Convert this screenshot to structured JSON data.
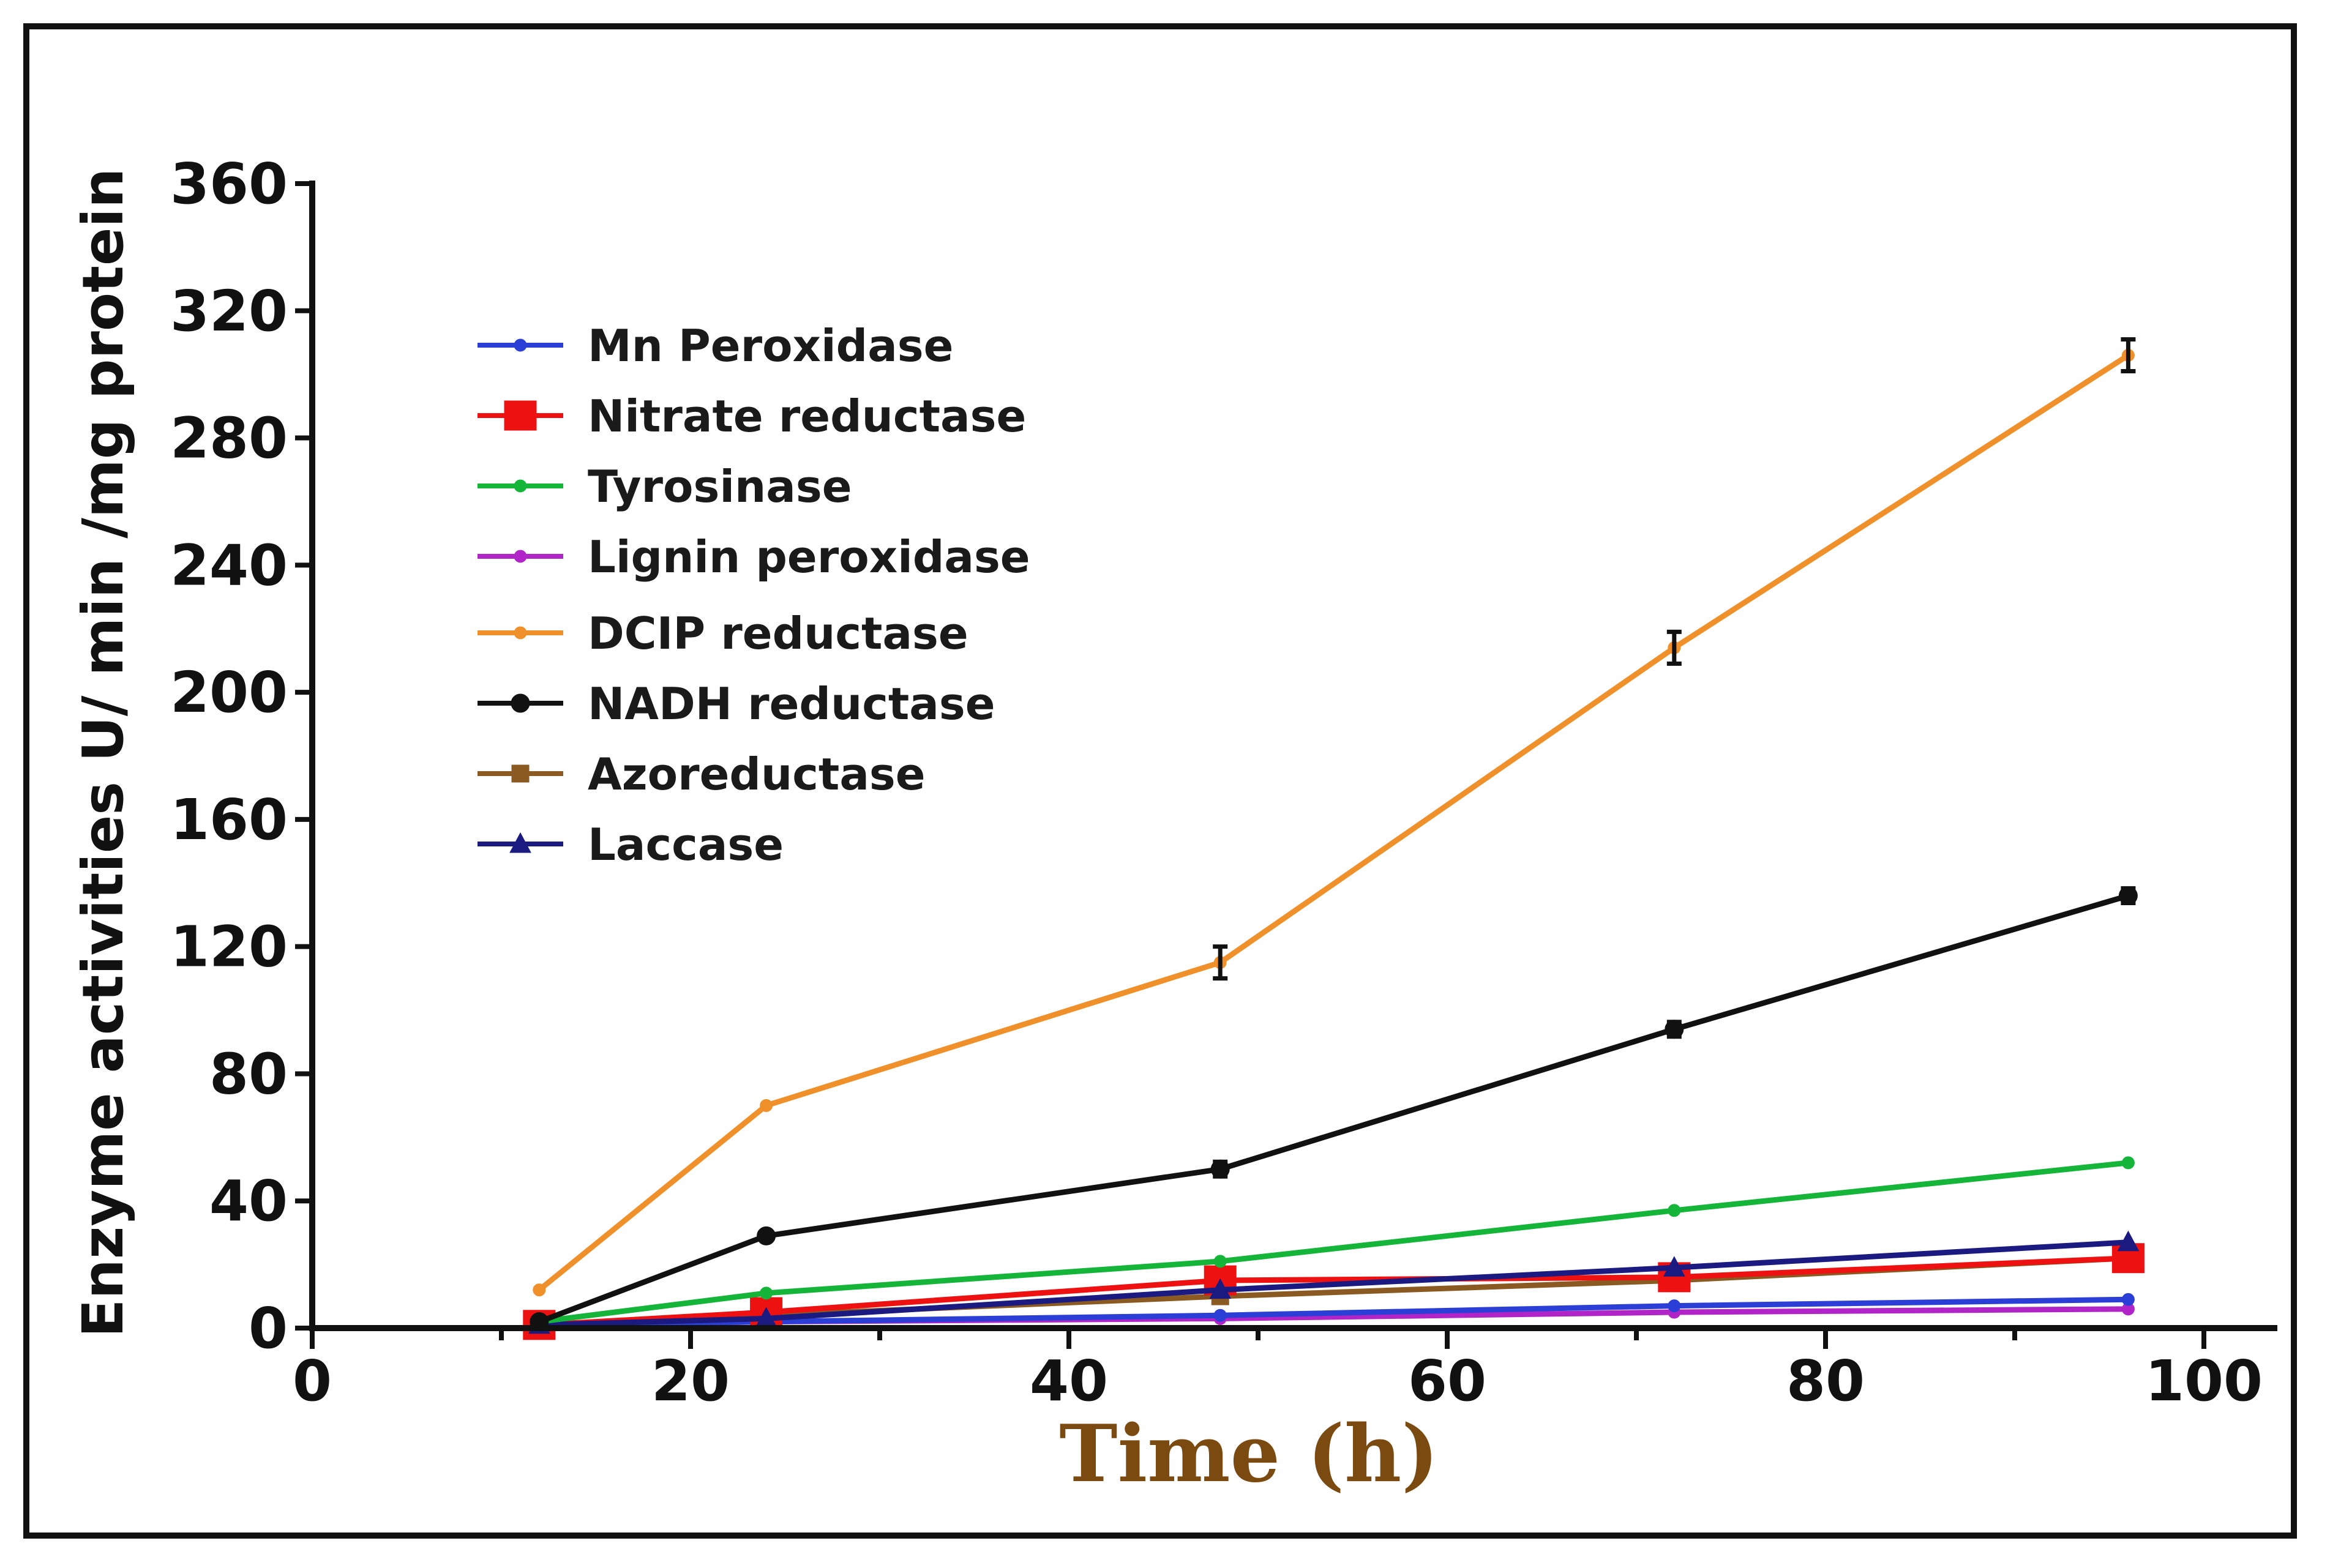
{
  "chart_data": {
    "type": "line",
    "title": "",
    "xlabel": "Time (h)",
    "ylabel": "Enzyme activities U/ min /mg protein",
    "xlim": [
      0,
      100
    ],
    "ylim": [
      0,
      360
    ],
    "xticks": [
      "0",
      "20",
      "40",
      "60",
      "80",
      "100"
    ],
    "yticks": [
      "0",
      "40",
      "80",
      "120",
      "160",
      "200",
      "240",
      "280",
      "320",
      "360"
    ],
    "xlabel_color": "#7a4a10",
    "legend_position": "upper-left",
    "x": [
      12,
      24,
      48,
      72,
      96
    ],
    "series": [
      {
        "name": "Mn Peroxidase",
        "color": "#2b3fd6",
        "marker": "circle-small",
        "values": [
          1,
          2,
          4,
          7,
          9
        ]
      },
      {
        "name": "Nitrate reductase",
        "color": "#ee1111",
        "marker": "square-large",
        "values": [
          1,
          5,
          15,
          16,
          22
        ]
      },
      {
        "name": "Tyrosinase",
        "color": "#15b53a",
        "marker": "circle-small",
        "values": [
          2,
          11,
          21,
          37,
          52
        ]
      },
      {
        "name": "Lignin peroxidase",
        "color": "#b024c8",
        "marker": "circle-small",
        "values": [
          1,
          2,
          3,
          5,
          6
        ]
      },
      {
        "name": "DCIP reductase",
        "color": "#f0902a",
        "marker": "circle-small",
        "values": [
          12,
          70,
          115,
          214,
          306
        ]
      },
      {
        "name": "NADH reductase",
        "color": "#111111",
        "marker": "circle",
        "values": [
          2,
          29,
          50,
          94,
          136
        ]
      },
      {
        "name": "Azoreductase",
        "color": "#8a5a22",
        "marker": "square",
        "values": [
          1,
          4,
          10,
          15,
          22
        ]
      },
      {
        "name": "Laccase",
        "color": "#1a1a80",
        "marker": "triangle",
        "values": [
          1,
          3,
          12,
          19,
          27
        ]
      }
    ]
  }
}
